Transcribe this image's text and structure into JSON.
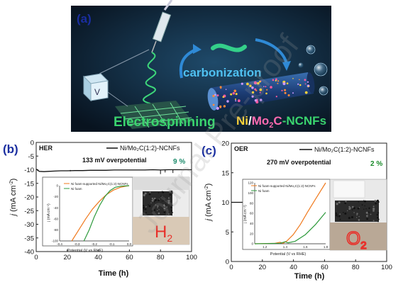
{
  "panel_a": {
    "label": "(a)",
    "electrospinning": "Electrospinning",
    "carbonization": "carbonization",
    "product": {
      "ni": "Ni",
      "slash": "/",
      "mo": "Mo",
      "sub": "2",
      "c": "C",
      "rest": "-NCNFs"
    },
    "box_letter": "V"
  },
  "panel_b": {
    "label": "(b)",
    "corner": "HER",
    "legend": "Ni/Mo₂C(1:2)-NCNFs",
    "annotation": "133 mV overpotential",
    "percent": "9 %",
    "percent_color": "#1a8a6a",
    "photo_label": {
      "main": "H",
      "sub": "2"
    },
    "inset": {
      "legend": [
        "Ni foam-supported Ni/Mo₂C(1:2)-NCNFs",
        "Ni foam"
      ],
      "xlabel": "Potential (V vs RHE)",
      "ylabel": "j (mA cm⁻²)",
      "xticks": [
        "-0.4",
        "-0.3",
        "-0.2",
        "-0.1",
        "0.0"
      ],
      "yticks": [
        "0",
        "-20",
        "-40",
        "-60",
        "-80",
        "-100"
      ]
    }
  },
  "panel_c": {
    "label": "(c)",
    "corner": "OER",
    "legend": "Ni/Mo₂C(1:2)-NCNFs",
    "annotation": "270 mV overpotential",
    "percent": "2 %",
    "percent_color": "#1a8a2a",
    "photo_label": {
      "main": "O",
      "sub": "2"
    },
    "inset": {
      "legend": [
        "Ni foam-supported Ni/Mo₂C(1:2)-NCNFs",
        "Ni foam"
      ],
      "xlabel": "Potential (V vs RHE)",
      "ylabel": "j (mA cm⁻²)",
      "xticks": [
        "1.2",
        "1.4",
        "1.6",
        "1.8"
      ],
      "yticks": [
        "0",
        "20",
        "40",
        "60",
        "80",
        "100",
        "120"
      ]
    }
  },
  "axes": {
    "xlabel": "Time (h)",
    "ylabel_main": "j",
    "ylabel_unit": " (mA cm",
    "ylabel_sup": "-2",
    "ylabel_close": ")"
  },
  "watermark": "Journal Pre-proof",
  "colors": {
    "orange": "#f07a1e",
    "green": "#2e9a3c",
    "black": "#111111",
    "panel_a_bg": "#10263a",
    "label_blue": "#1a2ea0"
  },
  "chart_data": [
    {
      "type": "line",
      "panel": "b",
      "x": [
        0,
        2,
        5,
        8,
        12,
        16,
        20,
        25,
        30,
        35,
        40,
        45,
        50,
        55,
        60,
        65,
        70,
        75,
        80,
        85,
        90,
        95,
        100
      ],
      "series": [
        {
          "name": "Ni/Mo₂C(1:2)-NCNFs",
          "values": [
            -9.8,
            -10.6,
            -10.7,
            -10.6,
            -10.5,
            -10.4,
            -10.4,
            -10.3,
            -10.3,
            -10.2,
            -10.2,
            -10.2,
            -10.1,
            -10.1,
            -10.1,
            -10.1,
            -10.1,
            -10.0,
            -10.1,
            -10.0,
            -10.0,
            -10.0,
            -10.0
          ]
        }
      ],
      "xlim": [
        0,
        100
      ],
      "ylim": [
        -40,
        0
      ],
      "xticks": [
        0,
        20,
        40,
        60,
        80,
        100
      ],
      "yticks": [
        0,
        -5,
        -10,
        -15,
        -20,
        -25,
        -30,
        -35,
        -40
      ],
      "xlabel": "Time (h)",
      "ylabel": "j (mA cm-2)"
    },
    {
      "type": "line",
      "panel": "c",
      "x": [
        0,
        5,
        10,
        20,
        30,
        40,
        50,
        60,
        70,
        80,
        90,
        100
      ],
      "series": [
        {
          "name": "Ni/Mo₂C(1:2)-NCNFs",
          "values": [
            10.0,
            10.0,
            10.0,
            9.9,
            9.9,
            9.9,
            9.8,
            9.8,
            9.8,
            9.8,
            9.8,
            9.8
          ]
        }
      ],
      "xlim": [
        0,
        100
      ],
      "ylim": [
        0,
        20
      ],
      "xticks": [
        0,
        20,
        40,
        60,
        80,
        100
      ],
      "yticks": [
        0,
        5,
        10,
        15,
        20
      ],
      "xlabel": "Time (h)",
      "ylabel": "j (mA cm-2)"
    },
    {
      "type": "line",
      "panel": "b-inset",
      "series": [
        {
          "name": "Ni foam-supported Ni/Mo₂C(1:2)-NCNFs",
          "x": [
            -0.33,
            -0.29,
            -0.25,
            -0.21,
            -0.17,
            -0.13,
            -0.09,
            -0.05,
            -0.02,
            0.0
          ],
          "values": [
            -100,
            -80,
            -60,
            -42,
            -28,
            -16,
            -8,
            -3,
            -1,
            0
          ]
        },
        {
          "name": "Ni foam",
          "x": [
            -0.26,
            -0.23,
            -0.2,
            -0.17,
            -0.14,
            -0.11,
            -0.08,
            -0.05,
            0.0
          ],
          "values": [
            -100,
            -80,
            -56,
            -36,
            -20,
            -9,
            -3,
            -1,
            0
          ]
        }
      ],
      "xlim": [
        -0.4,
        0.0
      ],
      "ylim": [
        -100,
        0
      ]
    },
    {
      "type": "line",
      "panel": "c-inset",
      "series": [
        {
          "name": "Ni foam-supported Ni/Mo₂C(1:2)-NCNFs",
          "x": [
            1.1,
            1.3,
            1.35,
            1.38,
            1.42,
            1.48,
            1.55,
            1.62,
            1.7,
            1.8
          ],
          "values": [
            0,
            1,
            3,
            1,
            6,
            18,
            38,
            62,
            88,
            120
          ]
        },
        {
          "name": "Ni foam",
          "x": [
            1.1,
            1.35,
            1.4,
            1.43,
            1.5,
            1.6,
            1.7,
            1.8
          ],
          "values": [
            0,
            1,
            4,
            2,
            5,
            18,
            38,
            62
          ]
        }
      ],
      "xlim": [
        1.1,
        1.8
      ],
      "ylim": [
        0,
        120
      ]
    }
  ]
}
